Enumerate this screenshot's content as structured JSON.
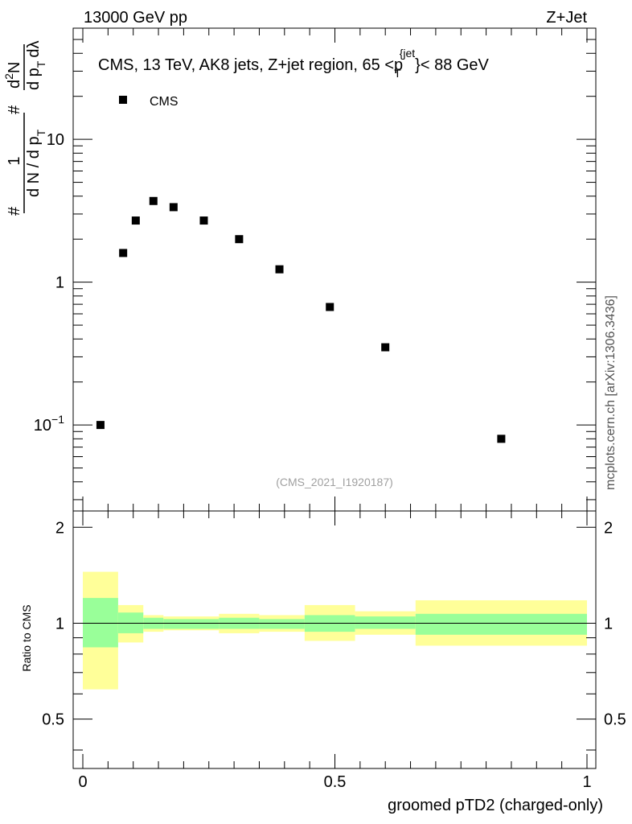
{
  "header": {
    "energy_label": "13000 GeV pp",
    "process_label": "Z+Jet"
  },
  "legend": {
    "series_name": "CMS"
  },
  "chart_data": {
    "type": "scatter",
    "title": "CMS, 13 TeV, AK8 jets, Z+jet region, 65 <p_T^{jet}< 88 GeV",
    "title_parts": {
      "before": "CMS, 13 TeV, AK8 jets, Z+jet region, 65 <",
      "p": "p",
      "sub": "T",
      "sup": "{jet",
      "after": "}< 88 GeV"
    },
    "xlabel": "groomed pTD2 (charged-only)",
    "ylabel": "1 / dN/dpT # · d²N / dpT # dλ",
    "ylabel_parts": {
      "hash_bottom": "#",
      "one": "1",
      "den": "d N / d p",
      "den_sub": "T",
      "hash_top": "#",
      "num_d2n": "d",
      "num_sup": "2",
      "num_n": "N",
      "num_den": "d p",
      "num_den_sub": "T",
      "dlambda": "dλ"
    },
    "yscale": "log",
    "xlim": [
      0,
      1
    ],
    "ylim": [
      0.025,
      60
    ],
    "yticks": [
      {
        "value": 10,
        "label": "10"
      },
      {
        "value": 1,
        "label": "1"
      },
      {
        "value": 0.1,
        "label": "10",
        "sup": "−1"
      }
    ],
    "xticks": [
      {
        "value": 0,
        "label": "0"
      },
      {
        "value": 0.5,
        "label": "0.5"
      },
      {
        "value": 1,
        "label": "1"
      }
    ],
    "series": [
      {
        "name": "CMS",
        "marker": "square",
        "color": "#000000",
        "x": [
          0.035,
          0.08,
          0.105,
          0.14,
          0.18,
          0.24,
          0.31,
          0.39,
          0.49,
          0.6,
          0.83
        ],
        "y": [
          0.1,
          1.6,
          2.7,
          3.7,
          3.35,
          2.7,
          2.0,
          1.23,
          0.67,
          0.35,
          0.08
        ]
      }
    ],
    "annotation": "(CMS_2021_I1920187)",
    "watermark": "mcplots.cern.ch [arXiv:1306.3436]",
    "ratio_panel": {
      "ylabel": "Ratio to CMS",
      "ylim": [
        0.35,
        2.25
      ],
      "yticks": [
        {
          "value": 0.5,
          "label": "0.5"
        },
        {
          "value": 1,
          "label": "1"
        },
        {
          "value": 2,
          "label": "2"
        }
      ],
      "reference_line": 1,
      "band_colors": {
        "inner": "#99ff99",
        "outer": "#ffff99"
      },
      "bins": [
        {
          "x0": 0.0,
          "x1": 0.07,
          "inner": [
            0.84,
            1.2
          ],
          "outer": [
            0.62,
            1.45
          ]
        },
        {
          "x0": 0.07,
          "x1": 0.12,
          "inner": [
            0.93,
            1.08
          ],
          "outer": [
            0.87,
            1.14
          ]
        },
        {
          "x0": 0.12,
          "x1": 0.16,
          "inner": [
            0.96,
            1.04
          ],
          "outer": [
            0.94,
            1.06
          ]
        },
        {
          "x0": 0.16,
          "x1": 0.27,
          "inner": [
            0.96,
            1.03
          ],
          "outer": [
            0.95,
            1.05
          ]
        },
        {
          "x0": 0.27,
          "x1": 0.35,
          "inner": [
            0.96,
            1.04
          ],
          "outer": [
            0.93,
            1.07
          ]
        },
        {
          "x0": 0.35,
          "x1": 0.44,
          "inner": [
            0.96,
            1.03
          ],
          "outer": [
            0.94,
            1.06
          ]
        },
        {
          "x0": 0.44,
          "x1": 0.54,
          "inner": [
            0.94,
            1.06
          ],
          "outer": [
            0.88,
            1.14
          ]
        },
        {
          "x0": 0.54,
          "x1": 0.66,
          "inner": [
            0.96,
            1.05
          ],
          "outer": [
            0.92,
            1.09
          ]
        },
        {
          "x0": 0.66,
          "x1": 1.0,
          "inner": [
            0.92,
            1.07
          ],
          "outer": [
            0.85,
            1.18
          ]
        }
      ]
    }
  }
}
